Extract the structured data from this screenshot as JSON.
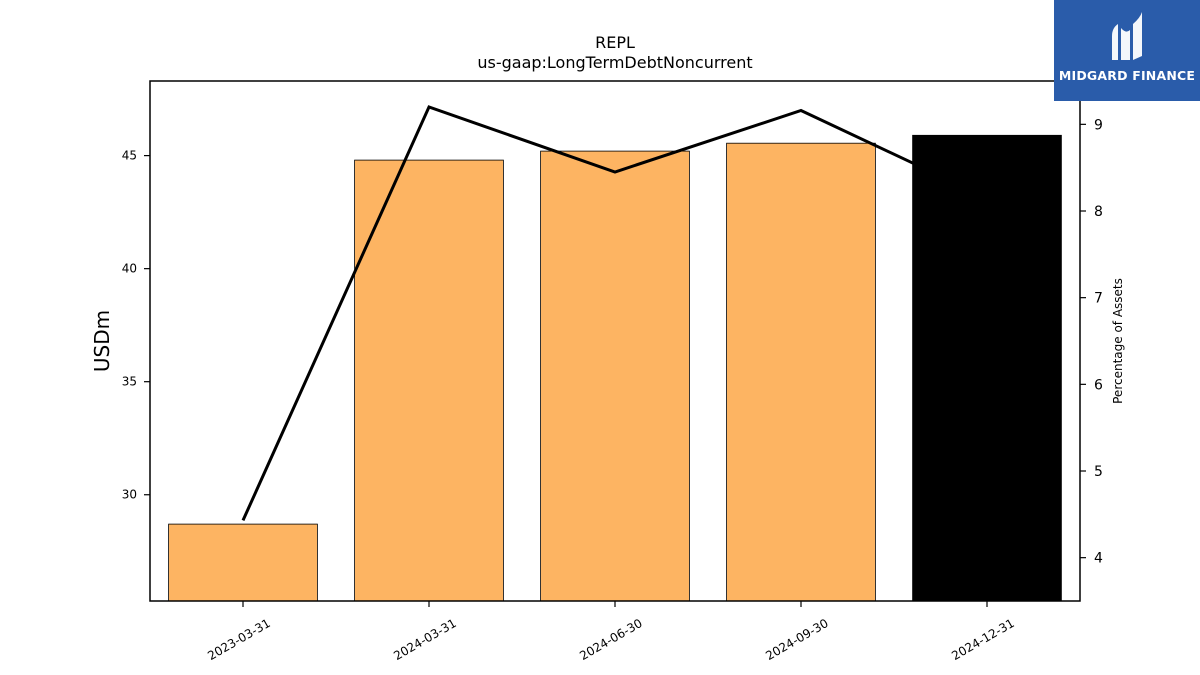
{
  "chart_data": {
    "type": "bar",
    "title": "REPL",
    "subtitle": "us-gaap:LongTermDebtNoncurrent",
    "categories": [
      "2023-03-31",
      "2024-03-31",
      "2024-06-30",
      "2024-09-30",
      "2024-12-31"
    ],
    "series": [
      {
        "values": [
          28.7,
          44.8,
          45.2,
          45.55,
          45.9
        ],
        "axis": "left",
        "kind": "bar"
      },
      {
        "values": [
          4.43,
          9.2,
          8.45,
          9.16,
          8.15
        ],
        "axis": "right",
        "kind": "line"
      }
    ],
    "bar_colors": [
      "#fdb462",
      "#fdb462",
      "#fdb462",
      "#fdb462",
      "#000000"
    ],
    "line_color": "#000000",
    "ylabel": "USDm",
    "ylabel_right": "Percentage of Assets",
    "ylim": [
      25.3,
      48.3
    ],
    "ylim_right": [
      3.5,
      9.5
    ],
    "yticks": [
      30,
      35,
      40,
      45
    ],
    "yticks_right": [
      4,
      5,
      6,
      7,
      8,
      9
    ],
    "grid": false,
    "legend": "none"
  },
  "logo": {
    "text": "MIDGARD FINANCE",
    "background": "#2a5caa"
  }
}
